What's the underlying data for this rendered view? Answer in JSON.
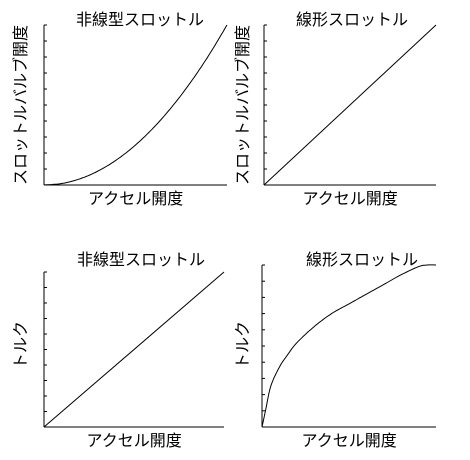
{
  "chart_data": [
    {
      "type": "line",
      "title": "非線型スロットル",
      "xlabel": "アクセル開度",
      "ylabel": "スロットルバルブ開度",
      "xlim": [
        0,
        100
      ],
      "ylim": [
        0,
        100
      ],
      "series": [
        {
          "x": [
            0,
            10,
            20,
            30,
            40,
            50,
            60,
            70,
            80,
            90,
            100
          ],
          "y": [
            0,
            1,
            4,
            9,
            16,
            25,
            36,
            49,
            64,
            81,
            100
          ]
        }
      ]
    },
    {
      "type": "line",
      "title": "線形スロットル",
      "xlabel": "アクセル開度",
      "ylabel": "スロットルバルブ開度",
      "xlim": [
        0,
        100
      ],
      "ylim": [
        0,
        100
      ],
      "series": [
        {
          "x": [
            0,
            100
          ],
          "y": [
            0,
            100
          ]
        }
      ]
    },
    {
      "type": "line",
      "title": "非線型スロットル",
      "xlabel": "アクセル開度",
      "ylabel": "トルク",
      "xlim": [
        0,
        100
      ],
      "ylim": [
        0,
        100
      ],
      "series": [
        {
          "x": [
            0,
            100
          ],
          "y": [
            0,
            100
          ]
        }
      ]
    },
    {
      "type": "line",
      "title": "線形スロットル",
      "xlabel": "アクセル開度",
      "ylabel": "トルク",
      "xlim": [
        0,
        100
      ],
      "ylim": [
        0,
        100
      ],
      "series": [
        {
          "x": [
            0,
            2,
            5,
            10,
            15,
            20,
            30,
            40,
            50,
            60,
            70,
            80,
            90,
            95,
            100
          ],
          "y": [
            0,
            10,
            25,
            37,
            45,
            52,
            62,
            70,
            76,
            82,
            88,
            94,
            99,
            100,
            100
          ]
        }
      ]
    }
  ]
}
